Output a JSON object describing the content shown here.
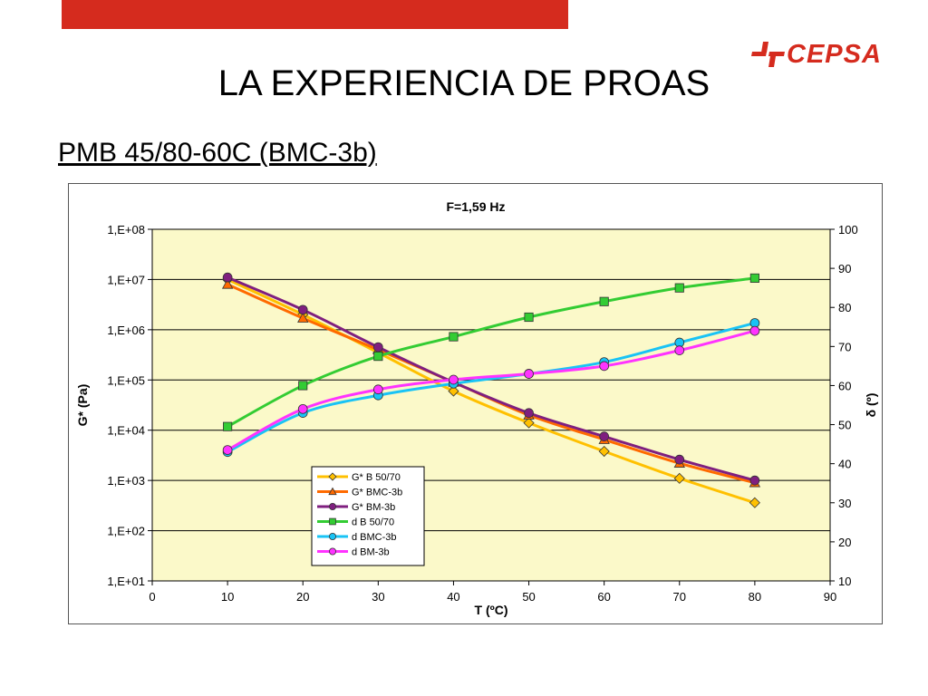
{
  "header": {
    "title": "LA EXPERIENCIA DE PROAS",
    "subtitle": "PMB 45/80-60C (BMC-3b)",
    "logo_text": "CEPSA",
    "accent_color": "#d52b1e"
  },
  "chart_data": {
    "type": "line",
    "title": "F=1,59 Hz",
    "xlabel": "T (ºC)",
    "ylabel": "G* (Pa)",
    "y2label": "δ (º)",
    "xlim": [
      0,
      90
    ],
    "xticks": [
      0,
      10,
      20,
      30,
      40,
      50,
      60,
      70,
      80,
      90
    ],
    "ylim": [
      10,
      100000000
    ],
    "yscale": "log",
    "yticks": [
      10,
      100,
      1000,
      10000,
      100000,
      1000000,
      10000000,
      100000000
    ],
    "yticklabels": [
      "1,E+01",
      "1,E+02",
      "1,E+03",
      "1,E+04",
      "1,E+05",
      "1,E+06",
      "1,E+07",
      "1,E+08"
    ],
    "y2lim": [
      10,
      100
    ],
    "y2ticks": [
      10,
      20,
      30,
      40,
      50,
      60,
      70,
      80,
      90,
      100
    ],
    "plot_background": "#fbf9c9",
    "grid": "horizontal",
    "legend_position": "lower-left",
    "series": [
      {
        "name": "G* B 50/70",
        "axis": "left",
        "color": "#ffc000",
        "marker": "diamond",
        "x": [
          10,
          20,
          30,
          40,
          50,
          60,
          70,
          80
        ],
        "y": [
          10000000,
          2000000,
          350000,
          60000,
          14000,
          3800,
          1100,
          360
        ]
      },
      {
        "name": "G* BMC-3b",
        "axis": "left",
        "color": "#ff6a00",
        "marker": "triangle",
        "x": [
          10,
          20,
          30,
          40,
          50,
          60,
          70,
          80
        ],
        "y": [
          8000000,
          1700000,
          400000,
          90000,
          20000,
          6500,
          2200,
          900
        ]
      },
      {
        "name": "G* BM-3b",
        "axis": "left",
        "color": "#7f1f7f",
        "marker": "circle",
        "x": [
          10,
          20,
          30,
          40,
          50,
          60,
          70,
          80
        ],
        "y": [
          11000000,
          2500000,
          450000,
          90000,
          22000,
          7500,
          2600,
          1000
        ]
      },
      {
        "name": "d B 50/70",
        "axis": "right",
        "color": "#33cc33",
        "marker": "square",
        "x": [
          10,
          20,
          30,
          40,
          50,
          60,
          70,
          80
        ],
        "y": [
          49.5,
          60,
          67.5,
          72.5,
          77.5,
          81.5,
          85,
          87.5
        ]
      },
      {
        "name": "d BMC-3b",
        "axis": "right",
        "color": "#19c3f5",
        "marker": "circle",
        "x": [
          10,
          20,
          30,
          40,
          50,
          60,
          70,
          80
        ],
        "y": [
          43,
          53,
          57.5,
          60.5,
          63,
          66,
          71,
          76
        ]
      },
      {
        "name": "d BM-3b",
        "axis": "right",
        "color": "#ff33ff",
        "marker": "circle",
        "x": [
          10,
          20,
          30,
          40,
          50,
          60,
          70,
          80
        ],
        "y": [
          43.5,
          54,
          59,
          61.5,
          63,
          65,
          69,
          74
        ]
      }
    ]
  }
}
